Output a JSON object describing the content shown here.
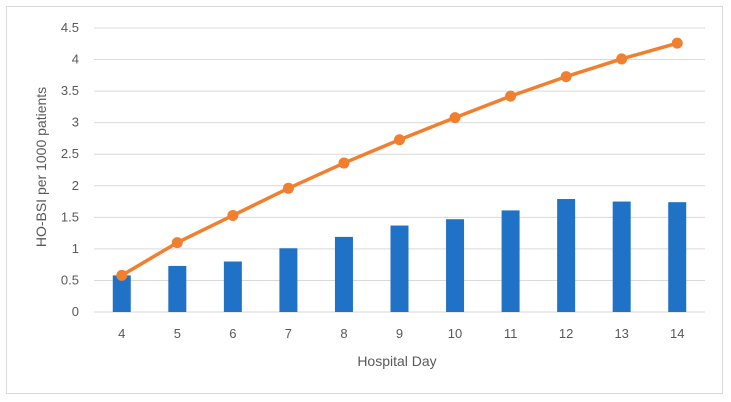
{
  "chart_data": {
    "type": "bar+line",
    "title": "",
    "xlabel": "Hospital Day",
    "ylabel": "HO-BSI per 1000 patients",
    "categories": [
      "4",
      "5",
      "6",
      "7",
      "8",
      "9",
      "10",
      "11",
      "12",
      "13",
      "14"
    ],
    "ylim": [
      0,
      4.5
    ],
    "yticks": [
      "0",
      "0.5",
      "1",
      "1.5",
      "2",
      "2.5",
      "3",
      "3.5",
      "4",
      "4.5"
    ],
    "grid": "horizontal",
    "legend": "none",
    "series": [
      {
        "type": "bar",
        "color": "#1f72c6",
        "values": [
          0.58,
          0.73,
          0.8,
          1.01,
          1.19,
          1.37,
          1.47,
          1.61,
          1.79,
          1.75,
          1.74
        ]
      },
      {
        "type": "line",
        "color": "#f07f2f",
        "values": [
          0.58,
          1.1,
          1.53,
          1.96,
          2.36,
          2.73,
          3.08,
          3.42,
          3.73,
          4.01,
          4.26
        ]
      }
    ]
  }
}
